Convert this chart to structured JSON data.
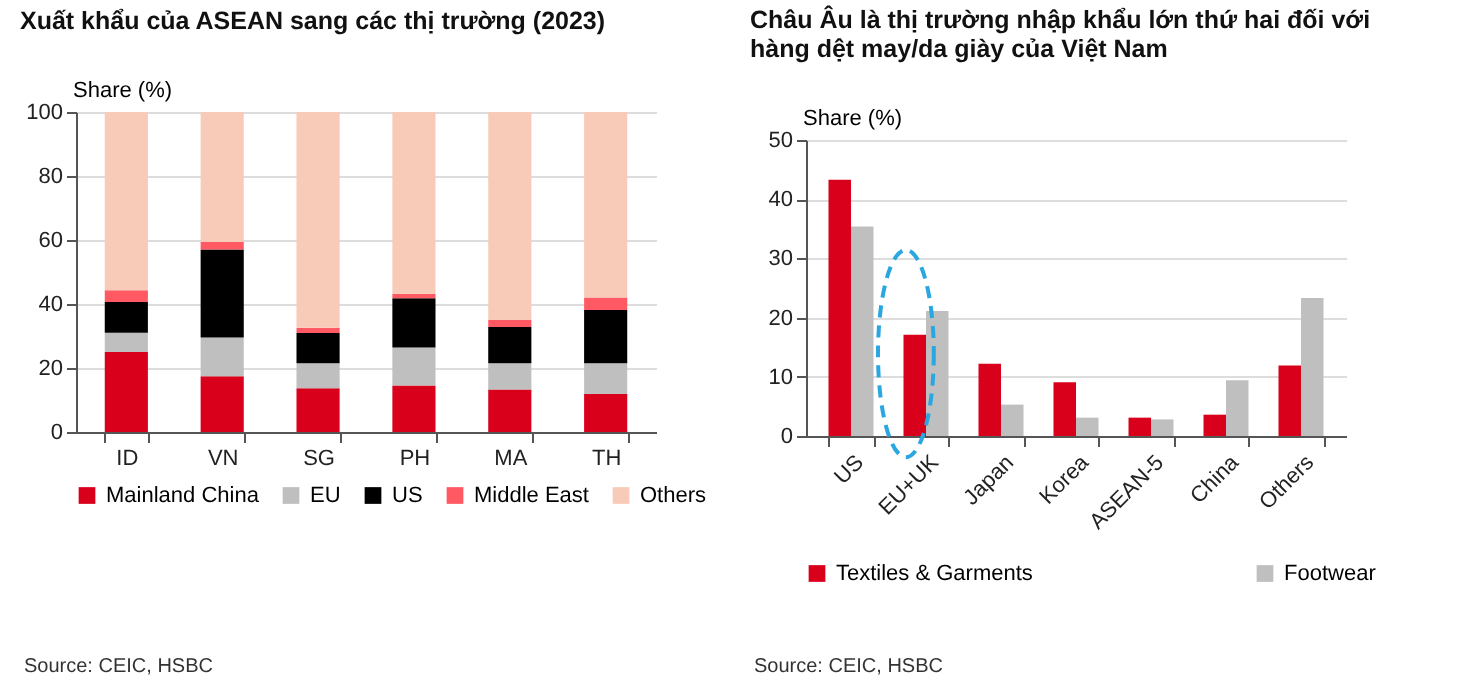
{
  "chart_data": [
    {
      "type": "bar",
      "title": "Xuất khẩu của ASEAN sang các thị trường (2023)",
      "ylabel": "Share (%)",
      "categories": [
        "ID",
        "VN",
        "SG",
        "PH",
        "MA",
        "TH"
      ],
      "stacked": true,
      "series": [
        {
          "name": "Mainland China",
          "color": "#d9001b",
          "values": [
            25,
            17.4,
            13.7,
            14.5,
            13.3,
            11.9
          ]
        },
        {
          "name": "EU",
          "color": "#bfbfbf",
          "values": [
            6,
            12.1,
            7.8,
            11.9,
            8.2,
            9.6
          ]
        },
        {
          "name": "US",
          "color": "#000000",
          "values": [
            9.6,
            27.5,
            9.4,
            15.4,
            11.3,
            16.6
          ]
        },
        {
          "name": "Middle East",
          "color": "#ff5a64",
          "values": [
            3.7,
            2.4,
            1.7,
            1.4,
            2.2,
            3.9
          ]
        },
        {
          "name": "Others",
          "color": "#f8cbb9",
          "values": [
            55.7,
            40.6,
            67.4,
            56.8,
            65,
            58
          ]
        }
      ],
      "ylim": [
        0,
        100
      ],
      "yticks": [
        0,
        20,
        40,
        60,
        80,
        100
      ],
      "grid": "y",
      "legend": "bottom",
      "annotations": [
        "Source: CEIC, HSBC"
      ]
    },
    {
      "type": "bar",
      "title": "Châu Âu là thị trường nhập khẩu lớn thứ hai đối với hàng dệt may/da giày của Việt Nam",
      "ylabel": "Share (%)",
      "categories": [
        "US",
        "EU+UK",
        "Japan",
        "Korea",
        "ASEAN-5",
        "China",
        "Others"
      ],
      "series": [
        {
          "name": "Textiles & Garments",
          "color": "#d9001b",
          "values": [
            43.3,
            17.1,
            12.2,
            9.1,
            3.1,
            3.6,
            11.9
          ]
        },
        {
          "name": "Footwear",
          "color": "#bfbfbf",
          "values": [
            35.4,
            21.1,
            5.3,
            3.1,
            2.8,
            9.4,
            23.3
          ]
        }
      ],
      "ylim": [
        0,
        50
      ],
      "yticks": [
        0,
        10,
        20,
        30,
        40,
        50
      ],
      "grid": "y",
      "legend": "bottom",
      "annotations": [
        "Source: CEIC, HSBC"
      ]
    }
  ]
}
